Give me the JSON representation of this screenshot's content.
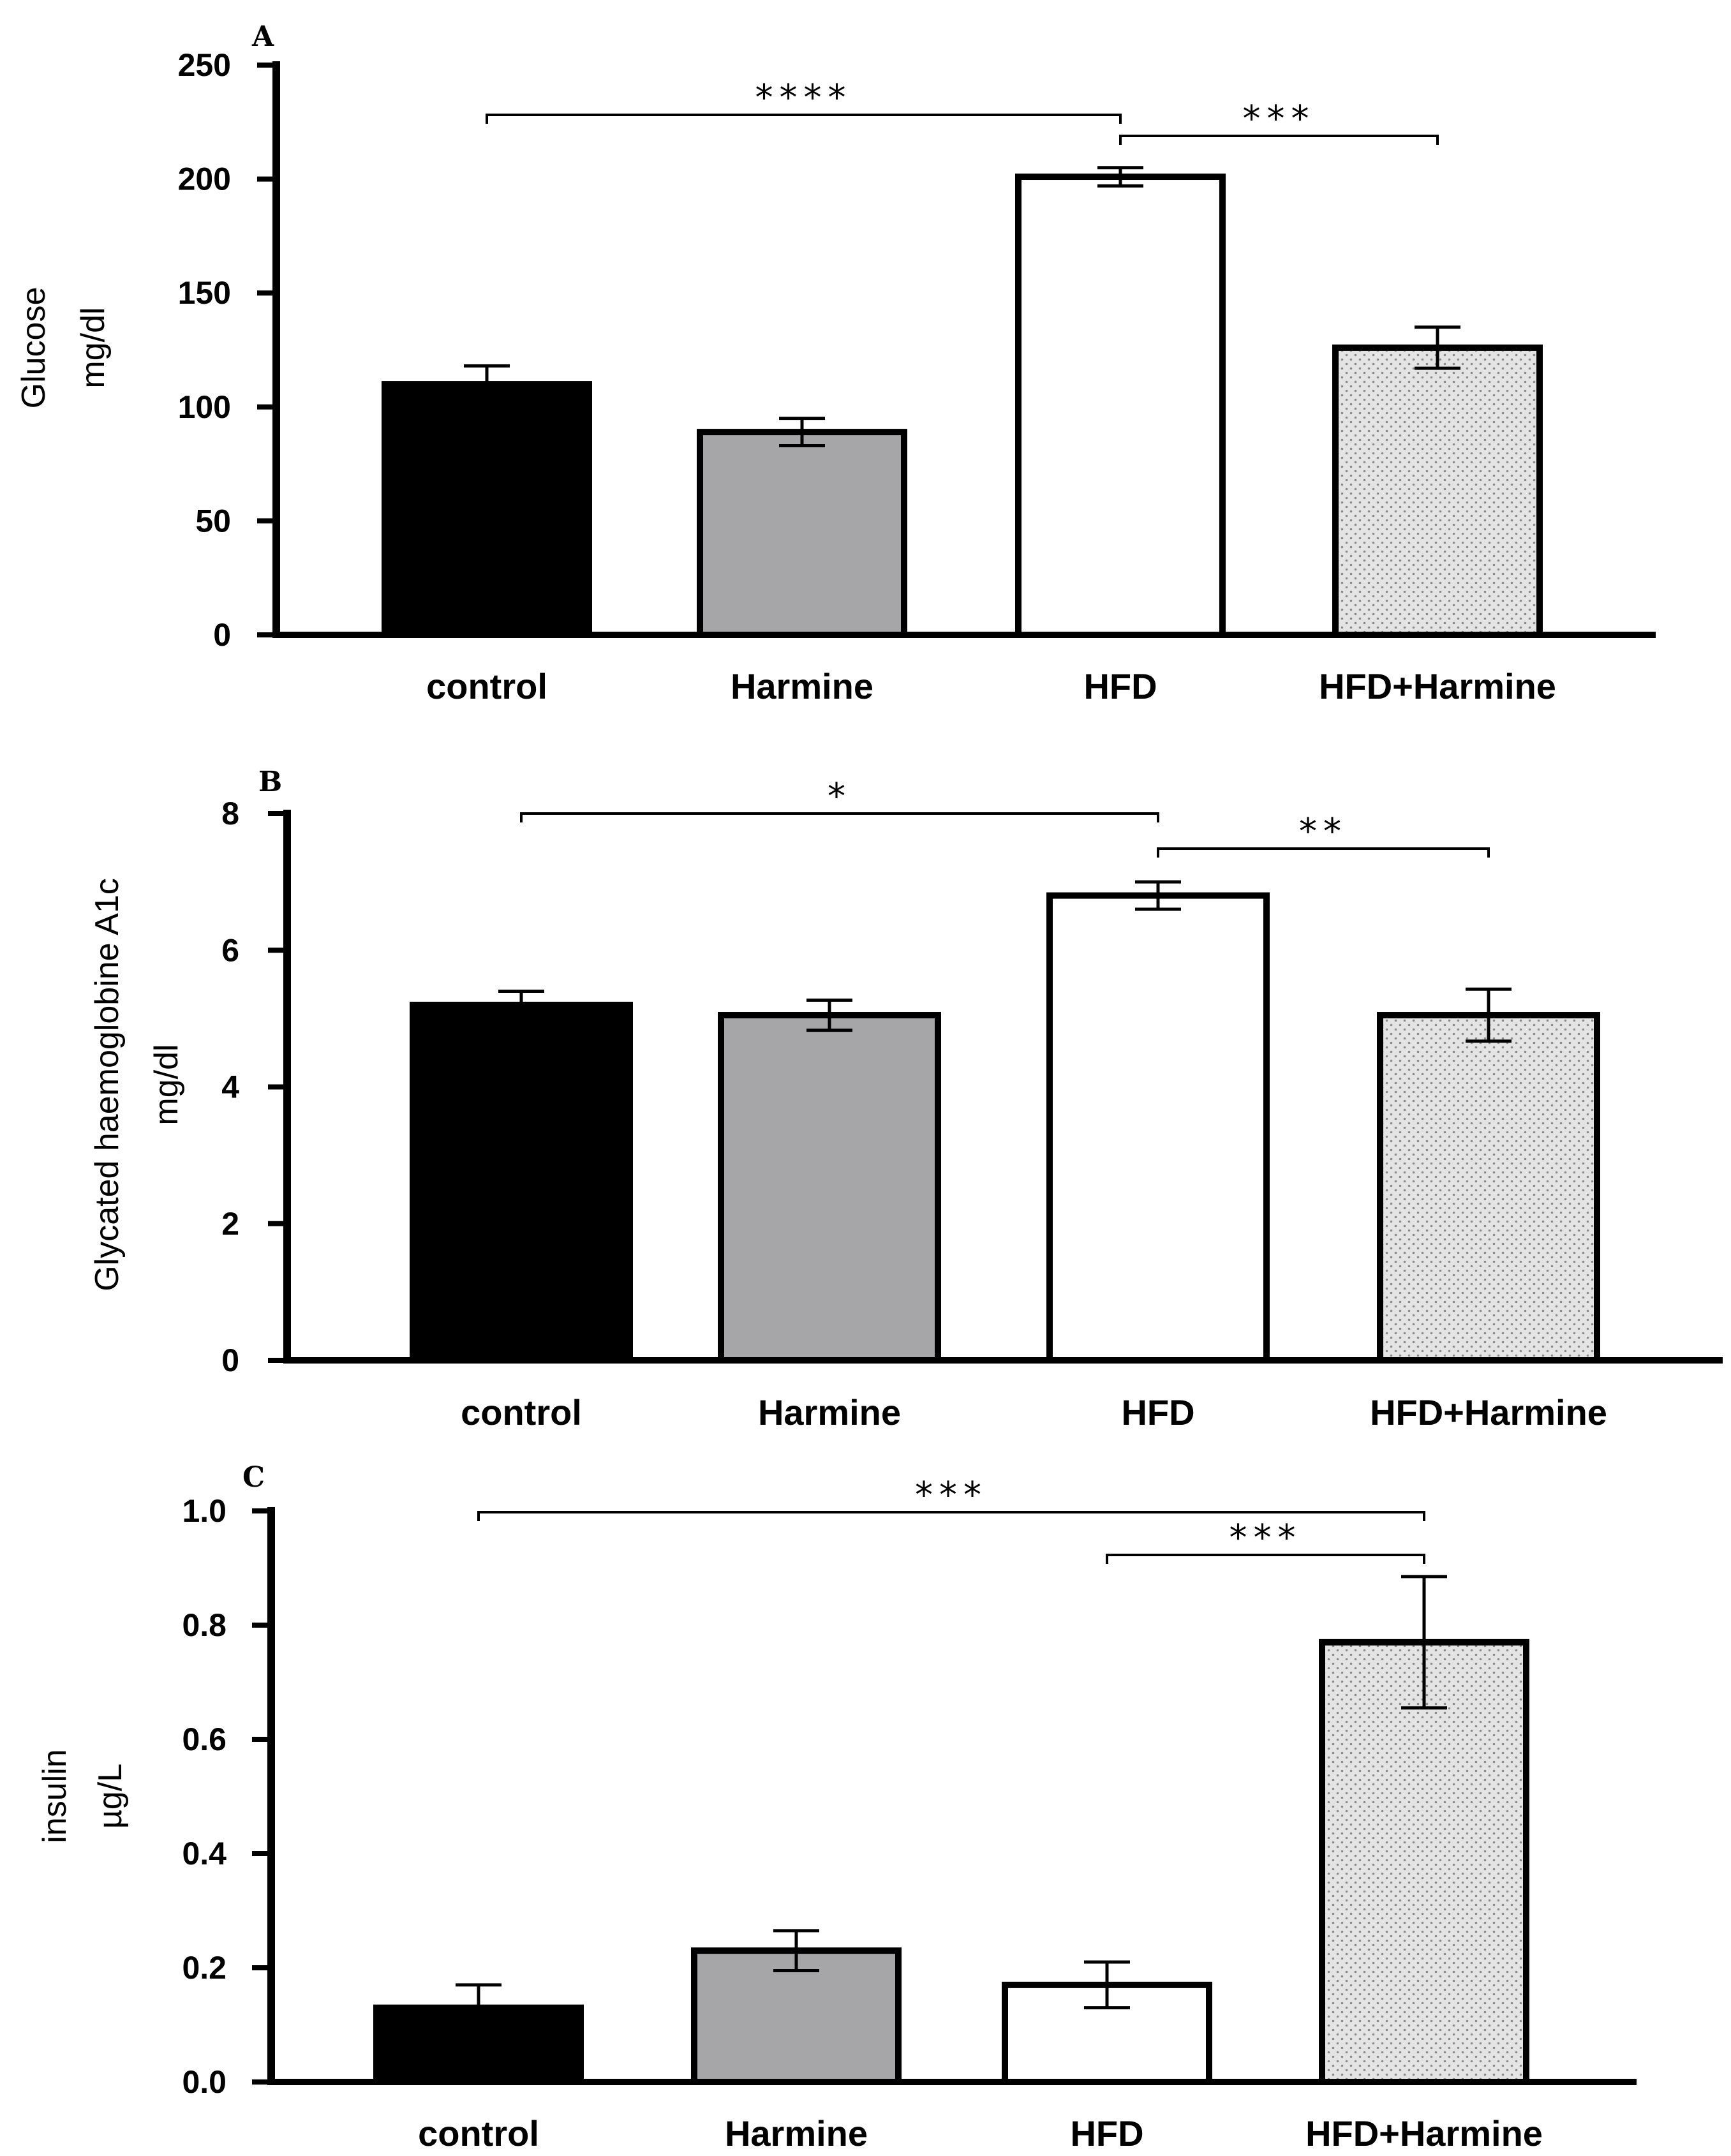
{
  "colors": {
    "control": "#000000",
    "Harmine": "#a6a6a9",
    "HFD": "#ffffff",
    "HFD+Harmine": "#e4e4e4",
    "stroke": "#000000"
  },
  "chart_data": [
    {
      "panel": "A",
      "type": "bar",
      "ylabel": [
        "Glucose",
        "mg/dl"
      ],
      "categories": [
        "control",
        "Harmine",
        "HFD",
        "HFD+Harmine"
      ],
      "values": [
        110,
        89,
        201,
        126
      ],
      "errors": [
        8,
        6,
        4,
        9
      ],
      "ylim": [
        0,
        250
      ],
      "yticks": [
        0,
        50,
        100,
        150,
        200,
        250
      ],
      "ytick_labels": [
        "0",
        "50",
        "100",
        "150",
        "200",
        "250"
      ],
      "significance": [
        {
          "from": "control",
          "to": "HFD",
          "label": "****"
        },
        {
          "from": "HFD",
          "to": "HFD+Harmine",
          "label": "***"
        }
      ]
    },
    {
      "panel": "B",
      "type": "bar",
      "ylabel": [
        "Glycated haemoglobine A1c",
        "mg/dl"
      ],
      "categories": [
        "control",
        "Harmine",
        "HFD",
        "HFD+Harmine"
      ],
      "values": [
        5.2,
        5.05,
        6.8,
        5.05
      ],
      "errors": [
        0.2,
        0.22,
        0.2,
        0.38
      ],
      "ylim": [
        0,
        8
      ],
      "yticks": [
        0,
        2,
        4,
        6,
        8
      ],
      "ytick_labels": [
        "0",
        "2",
        "4",
        "6",
        "8"
      ],
      "significance": [
        {
          "from": "control",
          "to": "HFD",
          "label": "*"
        },
        {
          "from": "HFD",
          "to": "HFD+Harmine",
          "label": "**"
        }
      ]
    },
    {
      "panel": "C",
      "type": "bar",
      "ylabel": [
        "insulin",
        "µg/L"
      ],
      "categories": [
        "control",
        "Harmine",
        "HFD",
        "HFD+Harmine"
      ],
      "values": [
        0.13,
        0.23,
        0.17,
        0.77
      ],
      "errors": [
        0.04,
        0.035,
        0.04,
        0.115
      ],
      "ylim": [
        0,
        1.0
      ],
      "yticks": [
        0,
        0.2,
        0.4,
        0.6,
        0.8,
        1.0
      ],
      "ytick_labels": [
        "0.0",
        "0.2",
        "0.4",
        "0.6",
        "0.8",
        "1.0"
      ],
      "significance": [
        {
          "from": "control",
          "to": "HFD+Harmine",
          "label": "***"
        },
        {
          "from": "HFD",
          "to": "HFD+Harmine",
          "label": "***"
        }
      ]
    }
  ]
}
